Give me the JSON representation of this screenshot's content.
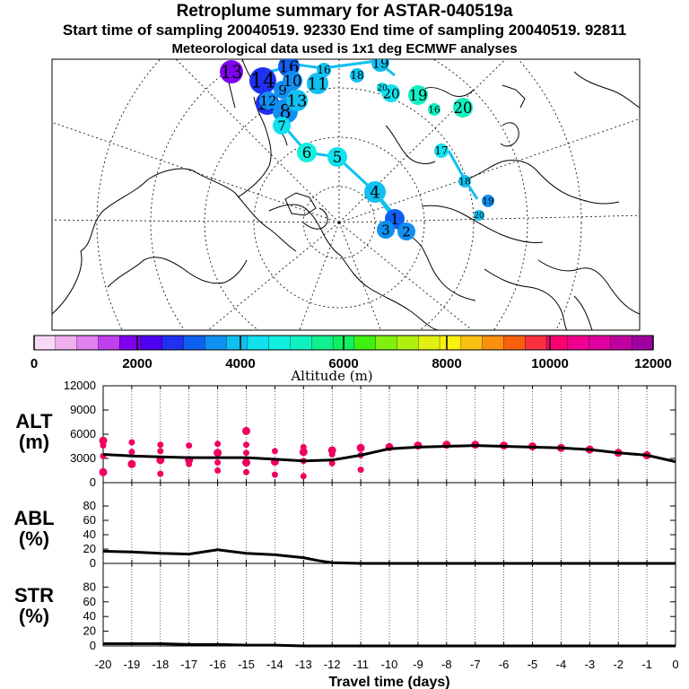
{
  "header": {
    "title": "Retroplume summary for ASTAR-040519a",
    "line2": "Start time of sampling 20040519. 92330     End time of sampling 20040519. 92811",
    "line3": "Meteorological data used is 1x1 deg ECMWF analyses"
  },
  "colorbar": {
    "label": "Altitude (m)",
    "ticks": [
      "0",
      "2000",
      "4000",
      "6000",
      "8000",
      "10000",
      "12000"
    ],
    "colors": [
      "#f8d8f8",
      "#f0b0f0",
      "#e080f0",
      "#c040f0",
      "#8000f0",
      "#5000f0",
      "#2030f0",
      "#1060f0",
      "#1090f0",
      "#10c0f0",
      "#10e0f0",
      "#10f0e0",
      "#10f0c0",
      "#10f090",
      "#10f060",
      "#40f010",
      "#80f010",
      "#b0f010",
      "#e0f010",
      "#f8f010",
      "#f8c010",
      "#f89010",
      "#f86010",
      "#f83040",
      "#f80070",
      "#f00090",
      "#e000a0",
      "#c000a0",
      "#a000a0"
    ]
  },
  "map_labels": [
    {
      "text": "13",
      "color": "#8000f0"
    },
    {
      "text": "14",
      "color": "#2030f0"
    },
    {
      "text": "15",
      "color": "#2030f0"
    },
    {
      "text": "16",
      "color": "#1060f0"
    },
    {
      "text": "9",
      "color": "#1090f0"
    },
    {
      "text": "10",
      "color": "#1090f0"
    },
    {
      "text": "11",
      "color": "#10c0f0"
    },
    {
      "text": "12",
      "color": "#1090f0"
    },
    {
      "text": "8",
      "color": "#1090f0"
    },
    {
      "text": "13",
      "color": "#10c0f0"
    },
    {
      "text": "7",
      "color": "#10e0f0"
    },
    {
      "text": "6",
      "color": "#10f0e0"
    },
    {
      "text": "5",
      "color": "#10e0f0"
    },
    {
      "text": "4",
      "color": "#10c0f0"
    },
    {
      "text": "1",
      "color": "#1060f0"
    },
    {
      "text": "3",
      "color": "#1090f0"
    },
    {
      "text": "2",
      "color": "#1090f0"
    },
    {
      "text": "18",
      "color": "#10c0f0"
    },
    {
      "text": "19",
      "color": "#10c0f0"
    },
    {
      "text": "20",
      "color": "#10e0f0"
    },
    {
      "text": "20",
      "color": "#10e0f0"
    },
    {
      "text": "19",
      "color": "#10f0c0"
    },
    {
      "text": "16",
      "color": "#10f0c0"
    },
    {
      "text": "20",
      "color": "#10f0c0"
    },
    {
      "text": "17",
      "color": "#10e0f0"
    },
    {
      "text": "18",
      "color": "#10c0f0"
    },
    {
      "text": "19",
      "color": "#1090f0"
    },
    {
      "text": "20",
      "color": "#10c0f0"
    },
    {
      "text": "16",
      "color": "#10c0f0"
    }
  ],
  "chart_data": [
    {
      "type": "scatter",
      "title": "ALT (m)",
      "ylabel": "ALT (m)",
      "xlabel": "Travel time (days)",
      "xlim": [
        -20,
        0
      ],
      "ylim": [
        0,
        12000
      ],
      "yticks": [
        0,
        3000,
        6000,
        9000,
        12000
      ],
      "line": {
        "name": "mean altitude",
        "x": [
          -20,
          -19,
          -18,
          -17,
          -16,
          -15,
          -14,
          -13,
          -12,
          -11,
          -10,
          -9,
          -8,
          -7,
          -6,
          -5,
          -4,
          -3,
          -2,
          -1,
          0
        ],
        "y": [
          3500,
          3300,
          3200,
          3100,
          3100,
          3100,
          2900,
          2700,
          2800,
          3400,
          4200,
          4400,
          4500,
          4600,
          4500,
          4400,
          4300,
          4100,
          3700,
          3400,
          2600
        ]
      },
      "points": [
        {
          "x": -20,
          "y": 5200
        },
        {
          "x": -20,
          "y": 4600
        },
        {
          "x": -20,
          "y": 3300
        },
        {
          "x": -20,
          "y": 1300
        },
        {
          "x": -19,
          "y": 5000
        },
        {
          "x": -19,
          "y": 3800
        },
        {
          "x": -19,
          "y": 2300
        },
        {
          "x": -18,
          "y": 4700
        },
        {
          "x": -18,
          "y": 3900
        },
        {
          "x": -18,
          "y": 2800
        },
        {
          "x": -18,
          "y": 1100
        },
        {
          "x": -17,
          "y": 4600
        },
        {
          "x": -17,
          "y": 2800
        },
        {
          "x": -17,
          "y": 2300
        },
        {
          "x": -16,
          "y": 4800
        },
        {
          "x": -16,
          "y": 3700
        },
        {
          "x": -16,
          "y": 2500
        },
        {
          "x": -16,
          "y": 1500
        },
        {
          "x": -15,
          "y": 6400
        },
        {
          "x": -15,
          "y": 4700
        },
        {
          "x": -15,
          "y": 3700
        },
        {
          "x": -15,
          "y": 2500
        },
        {
          "x": -15,
          "y": 1300
        },
        {
          "x": -14,
          "y": 3900
        },
        {
          "x": -14,
          "y": 2600
        },
        {
          "x": -14,
          "y": 1000
        },
        {
          "x": -13,
          "y": 4400
        },
        {
          "x": -13,
          "y": 3800
        },
        {
          "x": -13,
          "y": 2700
        },
        {
          "x": -13,
          "y": 800
        },
        {
          "x": -12,
          "y": 4000
        },
        {
          "x": -12,
          "y": 3500
        },
        {
          "x": -12,
          "y": 2400
        },
        {
          "x": -11,
          "y": 4300
        },
        {
          "x": -11,
          "y": 3400
        },
        {
          "x": -11,
          "y": 1600
        },
        {
          "x": -10,
          "y": 4400
        },
        {
          "x": -9,
          "y": 4600
        },
        {
          "x": -8,
          "y": 4700
        },
        {
          "x": -7,
          "y": 4700
        },
        {
          "x": -6,
          "y": 4600
        },
        {
          "x": -5,
          "y": 4500
        },
        {
          "x": -4,
          "y": 4300
        },
        {
          "x": -3,
          "y": 4100
        },
        {
          "x": -2,
          "y": 3700
        },
        {
          "x": -1,
          "y": 3400
        }
      ]
    },
    {
      "type": "line",
      "title": "ABL (%)",
      "ylabel": "ABL (%)",
      "xlim": [
        -20,
        0
      ],
      "ylim": [
        0,
        100
      ],
      "yticks": [
        0,
        20,
        40,
        60,
        80
      ],
      "series": [
        {
          "name": "ABL",
          "x": [
            -20,
            -19,
            -18,
            -17,
            -16,
            -15,
            -14,
            -13,
            -12.5,
            -12,
            -11,
            -10,
            -5,
            0
          ],
          "y": [
            17,
            16,
            14,
            13,
            19,
            14,
            12,
            8,
            4,
            1,
            0,
            0,
            0,
            0
          ]
        }
      ]
    },
    {
      "type": "line",
      "title": "STR (%)",
      "ylabel": "STR (%)",
      "xlim": [
        -20,
        0
      ],
      "ylim": [
        0,
        100
      ],
      "yticks": [
        0,
        20,
        40,
        60,
        80
      ],
      "series": [
        {
          "name": "STR",
          "x": [
            -20,
            -19,
            -18,
            -17,
            -16,
            -15,
            -14,
            -13,
            -12,
            -10,
            0
          ],
          "y": [
            3,
            3,
            3,
            2,
            2,
            1,
            1,
            0,
            0,
            0,
            0
          ]
        }
      ]
    }
  ],
  "xaxis": {
    "ticks": [
      "-20",
      "-19",
      "-18",
      "-17",
      "-16",
      "-15",
      "-14",
      "-13",
      "-12",
      "-11",
      "-10",
      "-9",
      "-8",
      "-7",
      "-6",
      "-5",
      "-4",
      "-3",
      "-2",
      "-1",
      "0"
    ],
    "label": "Travel time (days)"
  },
  "panel_labels": {
    "alt_line1": "ALT",
    "alt_line2": "(m)",
    "abl_line1": "ABL",
    "abl_line2": "(%)",
    "str_line1": "STR",
    "str_line2": "(%)"
  },
  "colors": {
    "scatter": "#f00060",
    "line": "#000000",
    "map_land": "#000000"
  }
}
